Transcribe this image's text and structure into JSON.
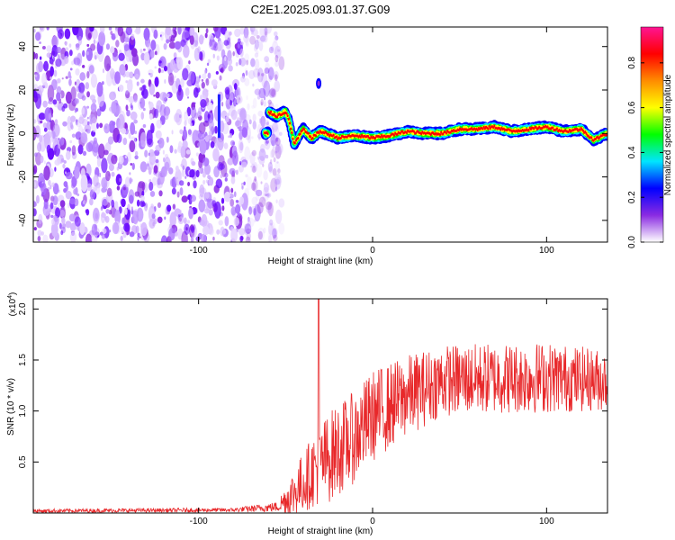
{
  "title": "C2E1.2025.093.01.37.G09",
  "chart_data": [
    {
      "type": "heatmap",
      "xlabel": "Height of straight line (km)",
      "ylabel": "Frequency (Hz)",
      "xlim": [
        -195,
        135
      ],
      "ylim": [
        -50,
        49
      ],
      "xticks": [
        -100,
        0,
        100
      ],
      "xtick_labels": [
        "-100",
        "0",
        "100"
      ],
      "yticks": [
        -40,
        -20,
        0,
        20,
        40
      ],
      "ytick_labels": [
        "-40",
        "-20",
        "0",
        "20",
        "40"
      ],
      "noise_region_x": [
        -195,
        -60
      ],
      "trace": [
        {
          "x": -60,
          "y": 10
        },
        {
          "x": -55,
          "y": 8
        },
        {
          "x": -50,
          "y": 10
        },
        {
          "x": -48,
          "y": 6
        },
        {
          "x": -45,
          "y": -5
        },
        {
          "x": -40,
          "y": 2
        },
        {
          "x": -35,
          "y": -2
        },
        {
          "x": -30,
          "y": 1
        },
        {
          "x": -20,
          "y": -2
        },
        {
          "x": -10,
          "y": -1
        },
        {
          "x": 0,
          "y": -2
        },
        {
          "x": 10,
          "y": -1
        },
        {
          "x": 20,
          "y": 1
        },
        {
          "x": 30,
          "y": 0
        },
        {
          "x": 40,
          "y": 0
        },
        {
          "x": 50,
          "y": 2
        },
        {
          "x": 60,
          "y": 2
        },
        {
          "x": 70,
          "y": 3
        },
        {
          "x": 80,
          "y": 1
        },
        {
          "x": 90,
          "y": 2
        },
        {
          "x": 100,
          "y": 3
        },
        {
          "x": 110,
          "y": 1
        },
        {
          "x": 120,
          "y": 2
        },
        {
          "x": 127,
          "y": -3
        },
        {
          "x": 135,
          "y": 0
        }
      ],
      "isolated_blobs": [
        {
          "x": -31,
          "y": 23
        }
      ],
      "colorbar": {
        "label": "Normalized spectral amplitude",
        "range": [
          0,
          0.96
        ],
        "ticks": [
          0.0,
          0.2,
          0.4,
          0.6,
          0.8
        ],
        "tick_labels": [
          "0.0",
          "0.2",
          "0.4",
          "0.6",
          "0.8"
        ],
        "colors": [
          "#ffffff",
          "#8a2be2",
          "#0000ff",
          "#00e5ff",
          "#00ff00",
          "#ffff00",
          "#ff8c00",
          "#ff0000",
          "#ff1493"
        ]
      }
    },
    {
      "type": "line",
      "xlabel": "Height of straight line (km)",
      "ylabel": "SNR (10 * v/v)",
      "multiplier_label": "(x10",
      "multiplier_exp": "4",
      "multiplier_close": ")",
      "xlim": [
        -195,
        135
      ],
      "ylim": [
        0,
        2.1
      ],
      "xticks": [
        -100,
        0,
        100
      ],
      "xtick_labels": [
        "-100",
        "0",
        "100"
      ],
      "yticks": [
        0.5,
        1.0,
        1.5,
        2.0
      ],
      "ytick_labels": [
        "0.5",
        "1.0",
        "1.5",
        "2.0"
      ],
      "color": "#e8282a",
      "envelope": [
        {
          "x": -195,
          "base": 0.02,
          "amp": 0.02
        },
        {
          "x": -80,
          "base": 0.03,
          "amp": 0.02
        },
        {
          "x": -55,
          "base": 0.06,
          "amp": 0.05
        },
        {
          "x": -45,
          "base": 0.2,
          "amp": 0.25
        },
        {
          "x": -35,
          "base": 0.4,
          "amp": 0.35
        },
        {
          "x": -25,
          "base": 0.55,
          "amp": 0.45
        },
        {
          "x": -10,
          "base": 0.75,
          "amp": 0.45
        },
        {
          "x": 0,
          "base": 0.95,
          "amp": 0.45
        },
        {
          "x": 20,
          "base": 1.15,
          "amp": 0.4
        },
        {
          "x": 40,
          "base": 1.3,
          "amp": 0.35
        },
        {
          "x": 70,
          "base": 1.32,
          "amp": 0.35
        },
        {
          "x": 100,
          "base": 1.33,
          "amp": 0.35
        },
        {
          "x": 135,
          "base": 1.3,
          "amp": 0.3
        }
      ],
      "peak": {
        "x": -31,
        "y": 2.1
      }
    }
  ]
}
